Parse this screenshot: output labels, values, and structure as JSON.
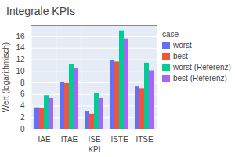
{
  "chart_data": {
    "type": "bar",
    "title": "Integrale KPIs",
    "x_label": "KPI",
    "y_label": "Wert (logarithmisch)",
    "legend_title": "case",
    "categories": [
      "IAE",
      "ITAE",
      "ISE",
      "ISTE",
      "ITSE"
    ],
    "series": [
      {
        "name": "worst",
        "color": "#636efa",
        "values": [
          3.7,
          8.1,
          3.0,
          11.8,
          7.3
        ]
      },
      {
        "name": "best",
        "color": "#ef553b",
        "values": [
          3.6,
          7.9,
          2.6,
          11.6,
          7.0
        ]
      },
      {
        "name": "worst (Referenz)",
        "color": "#00cc96",
        "values": [
          5.8,
          11.2,
          6.1,
          17.0,
          11.4
        ]
      },
      {
        "name": "best (Referenz)",
        "color": "#ab63fa",
        "values": [
          5.3,
          10.5,
          5.3,
          15.5,
          10.1
        ]
      }
    ],
    "ylim": [
      0,
      17.9
    ],
    "yticks": [
      0,
      2,
      4,
      6,
      8,
      10,
      12,
      14,
      16
    ],
    "grid": true,
    "legend": "right"
  }
}
